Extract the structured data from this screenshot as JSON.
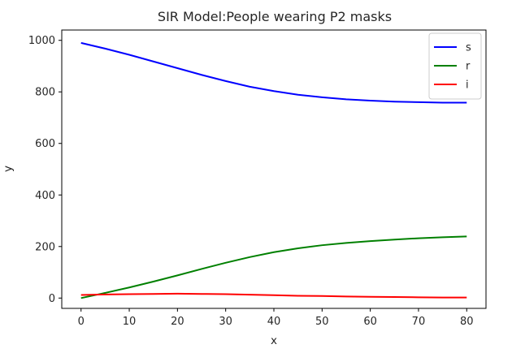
{
  "chart_data": {
    "type": "line",
    "title": "SIR Model:People wearing P2 masks",
    "xlabel": "x",
    "ylabel": "y",
    "xlim": [
      -4,
      84
    ],
    "ylim": [
      -40,
      1040
    ],
    "xticks": [
      0,
      10,
      20,
      30,
      40,
      50,
      60,
      70,
      80
    ],
    "yticks": [
      0,
      200,
      400,
      600,
      800,
      1000
    ],
    "grid": false,
    "legend_position": "top-right",
    "x": [
      0,
      5,
      10,
      15,
      20,
      25,
      30,
      35,
      40,
      45,
      50,
      55,
      60,
      65,
      70,
      75,
      80
    ],
    "series": [
      {
        "name": "s",
        "color": "#0000ff",
        "values": [
          990,
          968,
          944,
          918,
          892,
          866,
          842,
          820,
          803,
          789,
          779,
          771,
          766,
          762,
          760,
          758,
          758
        ]
      },
      {
        "name": "r",
        "color": "#008000",
        "values": [
          0,
          20,
          41,
          64,
          88,
          113,
          137,
          159,
          178,
          193,
          205,
          214,
          221,
          227,
          232,
          236,
          239
        ]
      },
      {
        "name": "i",
        "color": "#ff0000",
        "values": [
          12,
          14,
          15,
          16,
          17,
          16,
          15,
          13,
          11,
          9,
          8,
          6,
          5,
          4,
          3,
          2,
          2
        ]
      }
    ]
  }
}
